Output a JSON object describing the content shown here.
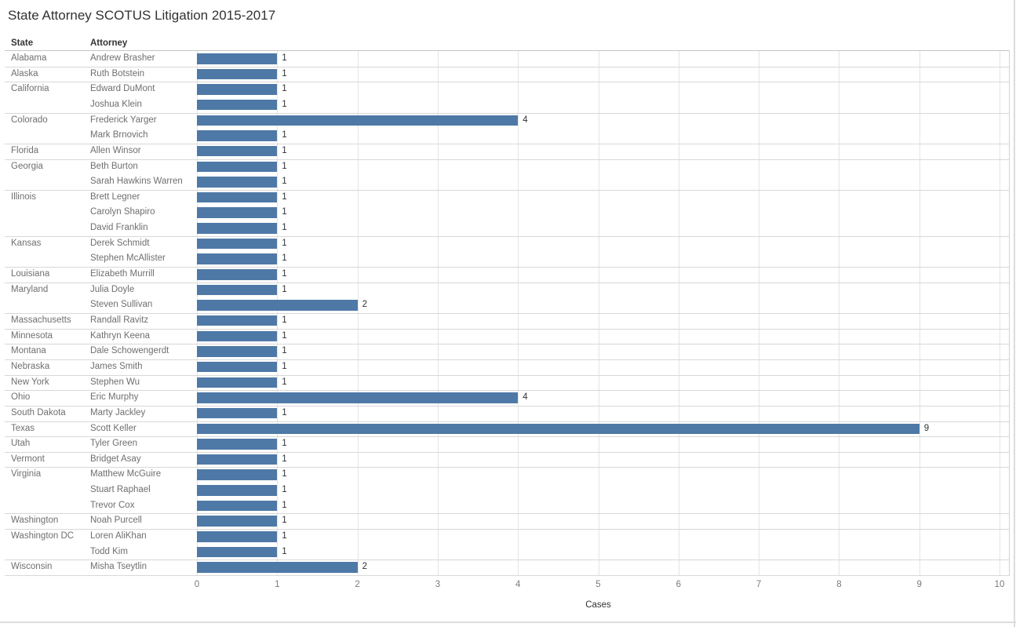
{
  "title": "State Attorney SCOTUS Litigation 2015-2017",
  "columns": {
    "state": "State",
    "attorney": "Attorney"
  },
  "colors": {
    "bar": "#4e79a7",
    "separator": "#d8d8d8",
    "gridline": "#e4e4e4",
    "label_gray": "#6f6f6f",
    "value_text": "#323232"
  },
  "chart_data": {
    "type": "bar",
    "orientation": "horizontal",
    "title": "State Attorney SCOTUS Litigation 2015-2017",
    "xlabel": "Cases",
    "ylabel": "",
    "xlim": [
      0,
      10
    ],
    "x_ticks": [
      0,
      1,
      2,
      3,
      4,
      5,
      6,
      7,
      8,
      9,
      10
    ],
    "grid": true,
    "groups": [
      {
        "state": "Alabama",
        "attorneys": [
          {
            "name": "Andrew Brasher",
            "cases": 1
          }
        ]
      },
      {
        "state": "Alaska",
        "attorneys": [
          {
            "name": "Ruth Botstein",
            "cases": 1
          }
        ]
      },
      {
        "state": "California",
        "attorneys": [
          {
            "name": "Edward DuMont",
            "cases": 1
          },
          {
            "name": "Joshua Klein",
            "cases": 1
          }
        ]
      },
      {
        "state": "Colorado",
        "attorneys": [
          {
            "name": "Frederick Yarger",
            "cases": 4
          },
          {
            "name": "Mark Brnovich",
            "cases": 1
          }
        ]
      },
      {
        "state": "Florida",
        "attorneys": [
          {
            "name": "Allen Winsor",
            "cases": 1
          }
        ]
      },
      {
        "state": "Georgia",
        "attorneys": [
          {
            "name": "Beth Burton",
            "cases": 1
          },
          {
            "name": "Sarah Hawkins Warren",
            "cases": 1
          }
        ]
      },
      {
        "state": "Illinois",
        "attorneys": [
          {
            "name": "Brett Legner",
            "cases": 1
          },
          {
            "name": "Carolyn Shapiro",
            "cases": 1
          },
          {
            "name": "David Franklin",
            "cases": 1
          }
        ]
      },
      {
        "state": "Kansas",
        "attorneys": [
          {
            "name": "Derek Schmidt",
            "cases": 1
          },
          {
            "name": "Stephen McAllister",
            "cases": 1
          }
        ]
      },
      {
        "state": "Louisiana",
        "attorneys": [
          {
            "name": "Elizabeth Murrill",
            "cases": 1
          }
        ]
      },
      {
        "state": "Maryland",
        "attorneys": [
          {
            "name": "Julia Doyle",
            "cases": 1
          },
          {
            "name": "Steven Sullivan",
            "cases": 2
          }
        ]
      },
      {
        "state": "Massachusetts",
        "attorneys": [
          {
            "name": "Randall Ravitz",
            "cases": 1
          }
        ]
      },
      {
        "state": "Minnesota",
        "attorneys": [
          {
            "name": "Kathryn Keena",
            "cases": 1
          }
        ]
      },
      {
        "state": "Montana",
        "attorneys": [
          {
            "name": "Dale Schowengerdt",
            "cases": 1
          }
        ]
      },
      {
        "state": "Nebraska",
        "attorneys": [
          {
            "name": "James Smith",
            "cases": 1
          }
        ]
      },
      {
        "state": "New York",
        "attorneys": [
          {
            "name": "Stephen Wu",
            "cases": 1
          }
        ]
      },
      {
        "state": "Ohio",
        "attorneys": [
          {
            "name": "Eric Murphy",
            "cases": 4
          }
        ]
      },
      {
        "state": "South Dakota",
        "attorneys": [
          {
            "name": "Marty Jackley",
            "cases": 1
          }
        ]
      },
      {
        "state": "Texas",
        "attorneys": [
          {
            "name": "Scott Keller",
            "cases": 9
          }
        ]
      },
      {
        "state": "Utah",
        "attorneys": [
          {
            "name": "Tyler Green",
            "cases": 1
          }
        ]
      },
      {
        "state": "Vermont",
        "attorneys": [
          {
            "name": "Bridget Asay",
            "cases": 1
          }
        ]
      },
      {
        "state": "Virginia",
        "attorneys": [
          {
            "name": "Matthew McGuire",
            "cases": 1
          },
          {
            "name": "Stuart Raphael",
            "cases": 1
          },
          {
            "name": "Trevor Cox",
            "cases": 1
          }
        ]
      },
      {
        "state": "Washington",
        "attorneys": [
          {
            "name": "Noah Purcell",
            "cases": 1
          }
        ]
      },
      {
        "state": "Washington DC",
        "attorneys": [
          {
            "name": "Loren AliKhan",
            "cases": 1
          },
          {
            "name": "Todd Kim",
            "cases": 1
          }
        ]
      },
      {
        "state": "Wisconsin",
        "attorneys": [
          {
            "name": "Misha Tseytlin",
            "cases": 2
          }
        ]
      }
    ]
  }
}
